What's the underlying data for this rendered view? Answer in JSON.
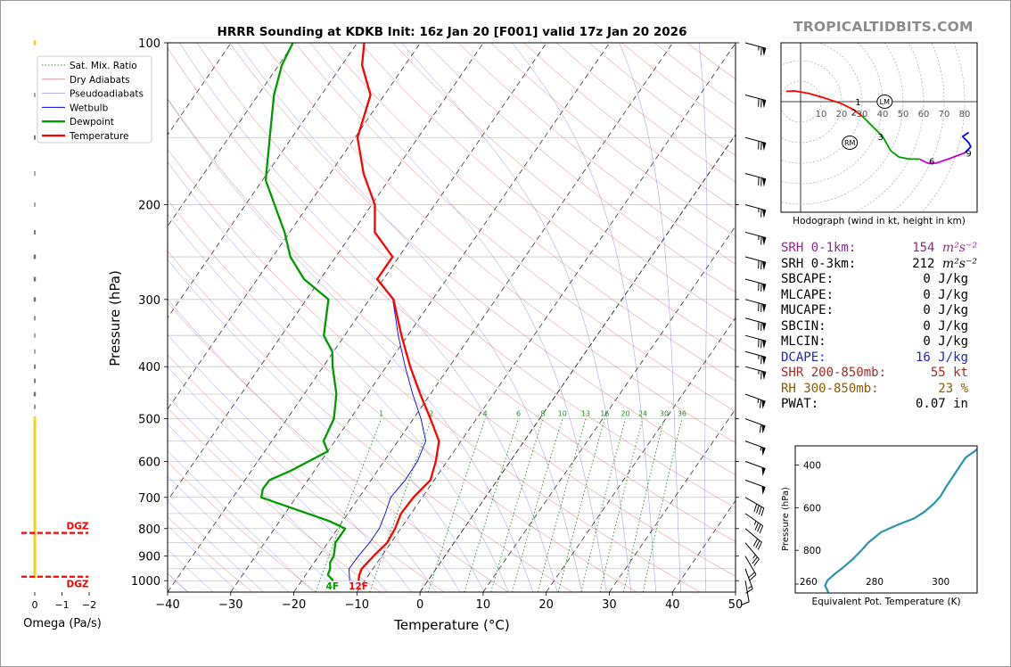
{
  "title": "HRRR Sounding at KDKB Init: 16z Jan 20 [F001] valid 17z Jan 20 2026",
  "brand": "TROPICALTIDBITS.COM",
  "chart_data": [
    {
      "type": "line",
      "name": "skew-t",
      "xlabel": "Temperature (°C)",
      "ylabel": "Pressure (hPa)",
      "xlim": [
        -40,
        50
      ],
      "ylim": [
        1050,
        100
      ],
      "x_ticks": [
        -40,
        -30,
        -20,
        -10,
        0,
        10,
        20,
        30,
        40,
        50
      ],
      "x_tick_labels": [
        "−40",
        "−30",
        "−20",
        "−10",
        "0",
        "10",
        "20",
        "30",
        "40",
        "50"
      ],
      "p_ticks": [
        100,
        200,
        300,
        400,
        500,
        600,
        700,
        800,
        900,
        1000
      ],
      "legend": [
        "Sat. Mix. Ratio",
        "Dry Adiabats",
        "Pseudoadiabats",
        "Wetbulb",
        "Dewpoint",
        "Temperature"
      ],
      "mixing_ratio_labels": [
        "1",
        "2",
        "4",
        "6",
        "8",
        "10",
        "13",
        "16",
        "20",
        "24",
        "30",
        "36"
      ],
      "surface_temp_label": "12F",
      "surface_dewpoint_label": "4F",
      "series": [
        {
          "name": "Temperature",
          "color": "#ff0000",
          "points": [
            [
              -11,
              1000
            ],
            [
              -11.5,
              975
            ],
            [
              -11.8,
              950
            ],
            [
              -11.3,
              900
            ],
            [
              -10.6,
              850
            ],
            [
              -10.9,
              800
            ],
            [
              -11.6,
              750
            ],
            [
              -11.4,
              700
            ],
            [
              -10.6,
              650
            ],
            [
              -11.8,
              600
            ],
            [
              -13.5,
              550
            ],
            [
              -17.3,
              500
            ],
            [
              -21.6,
              450
            ],
            [
              -26.2,
              400
            ],
            [
              -31.0,
              350
            ],
            [
              -36.2,
              300
            ],
            [
              -41.0,
              275
            ],
            [
              -41.0,
              250
            ],
            [
              -46.5,
              225
            ],
            [
              -49.5,
              200
            ],
            [
              -54.7,
              175
            ],
            [
              -59.6,
              150
            ],
            [
              -62.2,
              125
            ],
            [
              -66.8,
              110
            ],
            [
              -68.9,
              100
            ]
          ]
        },
        {
          "name": "Dewpoint",
          "color": "#009900",
          "points": [
            [
              -15,
              1000
            ],
            [
              -16.5,
              975
            ],
            [
              -16.8,
              950
            ],
            [
              -17.5,
              925
            ],
            [
              -17.6,
              900
            ],
            [
              -18.8,
              850
            ],
            [
              -18.8,
              800
            ],
            [
              -22.1,
              775
            ],
            [
              -35.5,
              700
            ],
            [
              -36.2,
              675
            ],
            [
              -36.1,
              650
            ],
            [
              -33.8,
              625
            ],
            [
              -30.0,
              575
            ],
            [
              -31.8,
              550
            ],
            [
              -32.6,
              500
            ],
            [
              -34.9,
              450
            ],
            [
              -38.5,
              400
            ],
            [
              -40.2,
              375
            ],
            [
              -43.3,
              350
            ],
            [
              -46.5,
              300
            ],
            [
              -52.6,
              275
            ],
            [
              -57.2,
              250
            ],
            [
              -60.8,
              225
            ],
            [
              -65.4,
              200
            ],
            [
              -69.5,
              180
            ],
            [
              -73.5,
              150
            ],
            [
              -77.5,
              125
            ],
            [
              -79.5,
              110
            ],
            [
              -80.2,
              100
            ]
          ]
        },
        {
          "name": "Wetbulb",
          "color": "#0000ee",
          "points": [
            [
              -12.4,
              1000
            ],
            [
              -13.8,
              950
            ],
            [
              -13.7,
              900
            ],
            [
              -13.4,
              850
            ],
            [
              -13.4,
              800
            ],
            [
              -14.1,
              750
            ],
            [
              -15.0,
              700
            ],
            [
              -14.6,
              650
            ],
            [
              -14.7,
              600
            ],
            [
              -15.6,
              550
            ],
            [
              -18.8,
              500
            ],
            [
              -22.8,
              450
            ],
            [
              -27.0,
              400
            ],
            [
              -31.5,
              350
            ],
            [
              -36.3,
              300
            ],
            [
              -41.0,
              275
            ]
          ]
        }
      ]
    },
    {
      "type": "line",
      "name": "hodograph",
      "caption": "Hodograph (wind in kt, height in km)",
      "ring_labels": [
        "10",
        "20",
        "30",
        "40",
        "50",
        "60",
        "70",
        "80"
      ],
      "height_labels": [
        "1",
        "2",
        "3",
        "6",
        "9"
      ],
      "storm_motion_labels": [
        "LM",
        "RM"
      ],
      "segments": [
        {
          "color": "#ff0000",
          "points": [
            [
              -7,
              5
            ],
            [
              -3,
              5.2
            ],
            [
              4,
              4
            ],
            [
              11,
              2
            ],
            [
              20,
              -1
            ],
            [
              26,
              -4
            ],
            [
              30,
              -7
            ]
          ]
        },
        {
          "color": "#009900",
          "points": [
            [
              30,
              -7
            ],
            [
              40,
              -17
            ],
            [
              44,
              -24
            ],
            [
              48,
              -27
            ],
            [
              53,
              -28
            ],
            [
              58,
              -28
            ]
          ]
        },
        {
          "color": "#cc00cc",
          "points": [
            [
              58,
              -28
            ],
            [
              62,
              -30
            ],
            [
              66,
              -30
            ],
            [
              72,
              -28
            ],
            [
              80,
              -25
            ]
          ]
        },
        {
          "color": "#0000ff",
          "points": [
            [
              80,
              -25
            ],
            [
              83,
              -22
            ],
            [
              82,
              -20
            ],
            [
              79,
              -17
            ],
            [
              82,
              -15
            ]
          ]
        }
      ]
    },
    {
      "type": "line",
      "name": "theta-e",
      "xlabel": "Equivalent Pot. Temperature (K)",
      "ylabel": "Pressure (hPa)",
      "xlim": [
        256,
        311
      ],
      "ylim": [
        1000,
        310
      ],
      "x_ticks": [
        260,
        280,
        300
      ],
      "y_ticks": [
        400,
        600,
        800
      ],
      "color": "#2a95a8",
      "points": [
        [
          266,
          998
        ],
        [
          265.5,
          980
        ],
        [
          265,
          965
        ],
        [
          265.8,
          940
        ],
        [
          268,
          910
        ],
        [
          270.5,
          880
        ],
        [
          273.5,
          840
        ],
        [
          276,
          800
        ],
        [
          278,
          765
        ],
        [
          282,
          715
        ],
        [
          287,
          680
        ],
        [
          292,
          650
        ],
        [
          295,
          620
        ],
        [
          298,
          580
        ],
        [
          300,
          545
        ],
        [
          301.5,
          505
        ],
        [
          303,
          470
        ],
        [
          304.5,
          435
        ],
        [
          306,
          400
        ],
        [
          307.5,
          365
        ],
        [
          310,
          338
        ],
        [
          311,
          325
        ]
      ]
    },
    {
      "type": "bar",
      "name": "omega",
      "xlabel": "Omega (Pa/s)",
      "x_ticks": [
        0,
        -1,
        -2
      ],
      "x_tick_labels": [
        "0",
        "−1",
        "−2"
      ],
      "dgz_label": "DGZ",
      "dgz_bounds_hpa": [
        815,
        983
      ],
      "p_levels": [
        100,
        125,
        150,
        175,
        200,
        225,
        250,
        275,
        300,
        325,
        350,
        375,
        400,
        425,
        450,
        475,
        500,
        525,
        550,
        575,
        600,
        625,
        650,
        675,
        700,
        725,
        750,
        775,
        800,
        825,
        850,
        875,
        900
      ],
      "values": [
        -0.03,
        -0.04,
        -0.06,
        -0.04,
        -0.03,
        -0.06,
        -0.08,
        -0.08,
        -0.08,
        -0.05,
        -0.04,
        -0.04,
        -0.06,
        -0.06,
        -0.08,
        -0.05,
        -0.04,
        -0.03,
        -0.02,
        -0.02,
        -0.03,
        -0.05,
        -0.05,
        -0.05,
        -0.05,
        -0.05,
        -0.04,
        -0.04,
        -0.04,
        -0.03,
        -0.02,
        -0.02,
        -0.01
      ]
    }
  ],
  "stats": [
    {
      "label": "SRH 0-1km:",
      "value": "154",
      "unit": "m²s⁻²",
      "color": "#8b2a8b"
    },
    {
      "label": "SRH 0-3km:",
      "value": "212",
      "unit": "m²s⁻²",
      "color": "#000000"
    },
    {
      "label": "SBCAPE:",
      "value": "0 J/kg",
      "color": "#000000"
    },
    {
      "label": "MLCAPE:",
      "value": "0 J/kg",
      "color": "#000000"
    },
    {
      "label": "MUCAPE:",
      "value": "0 J/kg",
      "color": "#000000"
    },
    {
      "label": "SBCIN:",
      "value": "0 J/kg",
      "color": "#000000"
    },
    {
      "label": "MLCIN:",
      "value": "0 J/kg",
      "color": "#000000"
    },
    {
      "label": "DCAPE:",
      "value": "16 J/kg",
      "color": "#2222cc"
    },
    {
      "label": "SHR 200-850mb:",
      "value": "55 kt",
      "color": "#a52a2a"
    },
    {
      "label": "RH 300-850mb:",
      "value": "23 %",
      "color": "#8b5a00"
    },
    {
      "label": "PWAT:",
      "value": "0.07 in",
      "color": "#000000"
    }
  ],
  "wind_barbs": [
    {
      "p": 100,
      "speed": 65,
      "dir": 285
    },
    {
      "p": 125,
      "speed": 70,
      "dir": 285
    },
    {
      "p": 150,
      "speed": 70,
      "dir": 285
    },
    {
      "p": 175,
      "speed": 70,
      "dir": 285
    },
    {
      "p": 200,
      "speed": 65,
      "dir": 285
    },
    {
      "p": 225,
      "speed": 65,
      "dir": 285
    },
    {
      "p": 250,
      "speed": 70,
      "dir": 285
    },
    {
      "p": 275,
      "speed": 70,
      "dir": 285
    },
    {
      "p": 300,
      "speed": 70,
      "dir": 285
    },
    {
      "p": 325,
      "speed": 70,
      "dir": 285
    },
    {
      "p": 350,
      "speed": 70,
      "dir": 285
    },
    {
      "p": 375,
      "speed": 65,
      "dir": 285
    },
    {
      "p": 400,
      "speed": 65,
      "dir": 285
    },
    {
      "p": 450,
      "speed": 65,
      "dir": 290
    },
    {
      "p": 500,
      "speed": 60,
      "dir": 290
    },
    {
      "p": 550,
      "speed": 55,
      "dir": 290
    },
    {
      "p": 600,
      "speed": 50,
      "dir": 290
    },
    {
      "p": 650,
      "speed": 50,
      "dir": 290
    },
    {
      "p": 700,
      "speed": 40,
      "dir": 300
    },
    {
      "p": 750,
      "speed": 35,
      "dir": 305
    },
    {
      "p": 800,
      "speed": 30,
      "dir": 310
    },
    {
      "p": 850,
      "speed": 25,
      "dir": 320
    },
    {
      "p": 900,
      "speed": 20,
      "dir": 330
    },
    {
      "p": 950,
      "speed": 15,
      "dir": 340
    },
    {
      "p": 1000,
      "speed": 10,
      "dir": 350
    }
  ]
}
